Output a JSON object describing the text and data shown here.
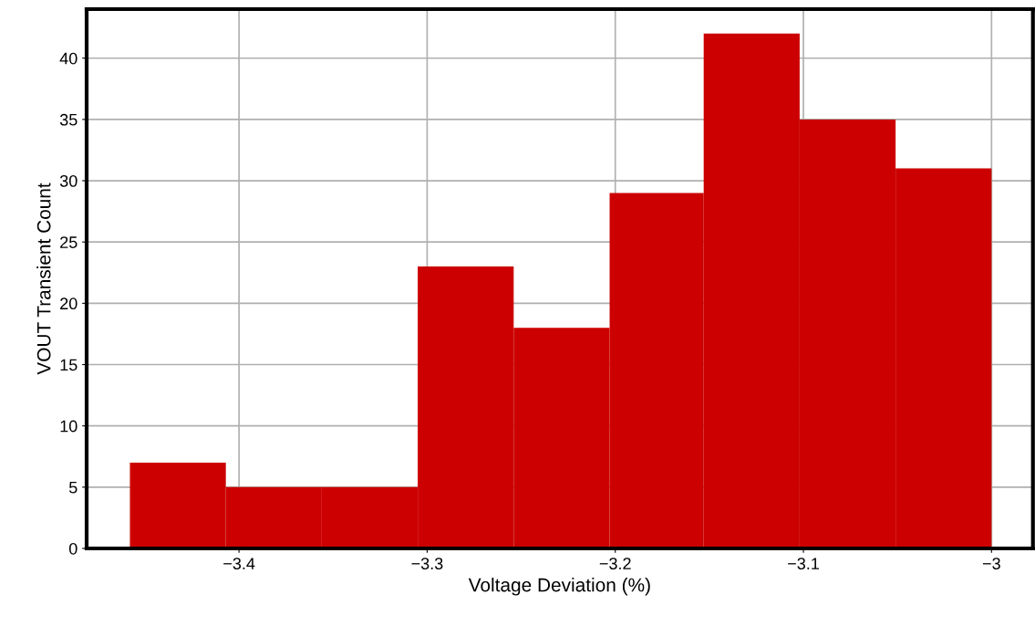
{
  "chart_data": {
    "type": "histogram",
    "xlabel": "Voltage Deviation (%)",
    "ylabel": "VOUT Transient Count",
    "bins": [
      -3.458,
      -3.407,
      -3.356,
      -3.305,
      -3.254,
      -3.203,
      -3.153,
      -3.102,
      -3.051,
      -3.0
    ],
    "values": [
      7,
      5,
      5,
      23,
      18,
      29,
      42,
      35,
      31
    ],
    "color": "#cc0000",
    "xlim": [
      -3.481,
      -2.978
    ],
    "ylim": [
      0,
      44
    ],
    "xticks": [
      {
        "value": -3.4,
        "label": "−3.4"
      },
      {
        "value": -3.3,
        "label": "−3.3"
      },
      {
        "value": -3.2,
        "label": "−3.2"
      },
      {
        "value": -3.1,
        "label": "−3.1"
      },
      {
        "value": -3,
        "label": "−3"
      }
    ],
    "yticks": [
      0,
      5,
      10,
      15,
      20,
      25,
      30,
      35,
      40
    ],
    "grid": true
  }
}
